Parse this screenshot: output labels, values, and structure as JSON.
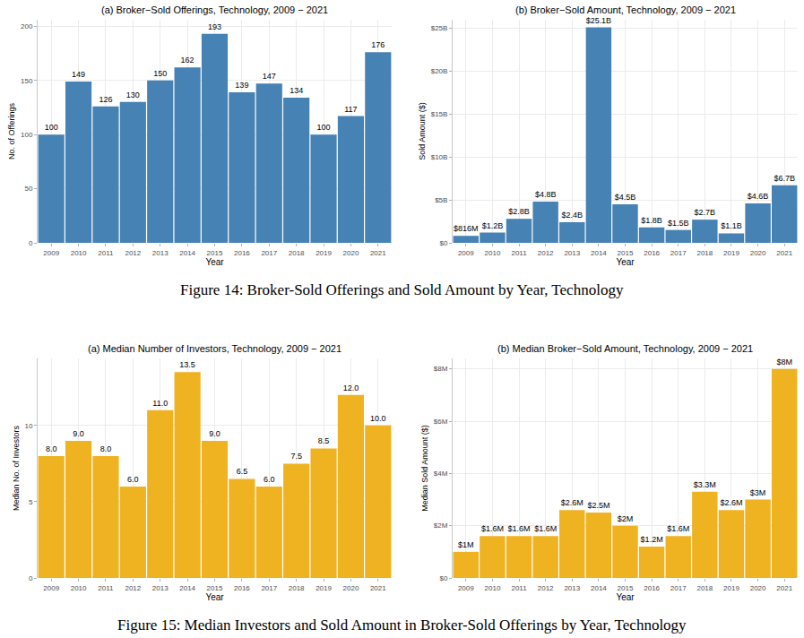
{
  "chart_data": [
    {
      "type": "bar",
      "title": "(a) Broker−Sold Offerings, Technology, 2009 − 2021",
      "x_label": "Year",
      "y_label": "No. of Offerings",
      "categories": [
        "2009",
        "2010",
        "2011",
        "2012",
        "2013",
        "2014",
        "2015",
        "2016",
        "2017",
        "2018",
        "2019",
        "2020",
        "2021"
      ],
      "values": [
        100,
        149,
        126,
        130,
        150,
        162,
        193,
        139,
        147,
        134,
        100,
        117,
        176
      ],
      "color": "#4682b4",
      "ylim": [
        0,
        206
      ],
      "yticks": [
        0,
        50,
        100,
        150,
        200
      ],
      "grid": true,
      "data_labels": true
    },
    {
      "type": "bar",
      "title": "(b) Broker−Sold Amount, Technology, 2009 − 2021",
      "x_label": "Year",
      "y_label": "Sold Amount ($)",
      "categories": [
        "2009",
        "2010",
        "2011",
        "2012",
        "2013",
        "2014",
        "2015",
        "2016",
        "2017",
        "2018",
        "2019",
        "2020",
        "2021"
      ],
      "values": [
        816000000,
        1200000000,
        2800000000,
        4800000000,
        2400000000,
        25100000000,
        4500000000,
        1800000000,
        1500000000,
        2700000000,
        1100000000,
        4600000000,
        6700000000
      ],
      "value_labels": [
        "$816M",
        "$1.2B",
        "$2.8B",
        "$4.8B",
        "$2.4B",
        "$25.1B",
        "$4.5B",
        "$1.8B",
        "$1.5B",
        "$2.7B",
        "$1.1B",
        "$4.6B",
        "$6.7B"
      ],
      "color": "#4682b4",
      "ylim": [
        0,
        26000000000
      ],
      "yticks": [
        {
          "value": 0,
          "label": "$0"
        },
        {
          "value": 5000000000,
          "label": "$5B"
        },
        {
          "value": 10000000000,
          "label": "$10B"
        },
        {
          "value": 15000000000,
          "label": "$15B"
        },
        {
          "value": 20000000000,
          "label": "$20B"
        },
        {
          "value": 25000000000,
          "label": "$25B"
        }
      ],
      "grid": true,
      "data_labels": true
    },
    {
      "type": "bar",
      "title": "(a) Median Number of Investors, Technology, 2009 − 2021",
      "x_label": "Year",
      "y_label": "Median No. of Investors",
      "categories": [
        "2009",
        "2010",
        "2011",
        "2012",
        "2013",
        "2014",
        "2015",
        "2016",
        "2017",
        "2018",
        "2019",
        "2020",
        "2021"
      ],
      "values": [
        8,
        9,
        8,
        6,
        11,
        13.5,
        9,
        6.5,
        6,
        7.5,
        8.5,
        12,
        10
      ],
      "value_labels": [
        "8.0",
        "9.0",
        "8.0",
        "6.0",
        "11.0",
        "13.5",
        "9.0",
        "6.5",
        "6.0",
        "7.5",
        "8.5",
        "12.0",
        "10.0"
      ],
      "color": "#efb321",
      "ylim": [
        0,
        14.4
      ],
      "yticks": [
        0,
        5,
        10
      ],
      "grid": true,
      "data_labels": true
    },
    {
      "type": "bar",
      "title": "(b) Median Broker−Sold Amount, Technology, 2009 − 2021",
      "x_label": "Year",
      "y_label": "Median Sold Amount ($)",
      "categories": [
        "2009",
        "2010",
        "2011",
        "2012",
        "2013",
        "2014",
        "2015",
        "2016",
        "2017",
        "2018",
        "2019",
        "2020",
        "2021"
      ],
      "values": [
        1000000,
        1600000,
        1600000,
        1600000,
        2600000,
        2500000,
        2000000,
        1200000,
        1600000,
        3300000,
        2600000,
        3000000,
        8000000
      ],
      "value_labels": [
        "$1M",
        "$1.6M",
        "$1.6M",
        "$1.6M",
        "$2.6M",
        "$2.5M",
        "$2M",
        "$1.2M",
        "$1.6M",
        "$3.3M",
        "$2.6M",
        "$3M",
        "$8M"
      ],
      "color": "#efb321",
      "ylim": [
        0,
        8400000
      ],
      "yticks": [
        {
          "value": 0,
          "label": "$0"
        },
        {
          "value": 2000000,
          "label": "$2M"
        },
        {
          "value": 4000000,
          "label": "$4M"
        },
        {
          "value": 6000000,
          "label": "$6M"
        },
        {
          "value": 8000000,
          "label": "$8M"
        }
      ],
      "grid": true,
      "data_labels": true
    }
  ],
  "captions": [
    "Figure 14: Broker-Sold Offerings and Sold Amount by Year, Technology",
    "Figure 15: Median Investors and Sold Amount in Broker-Sold Offerings by Year, Technology"
  ]
}
